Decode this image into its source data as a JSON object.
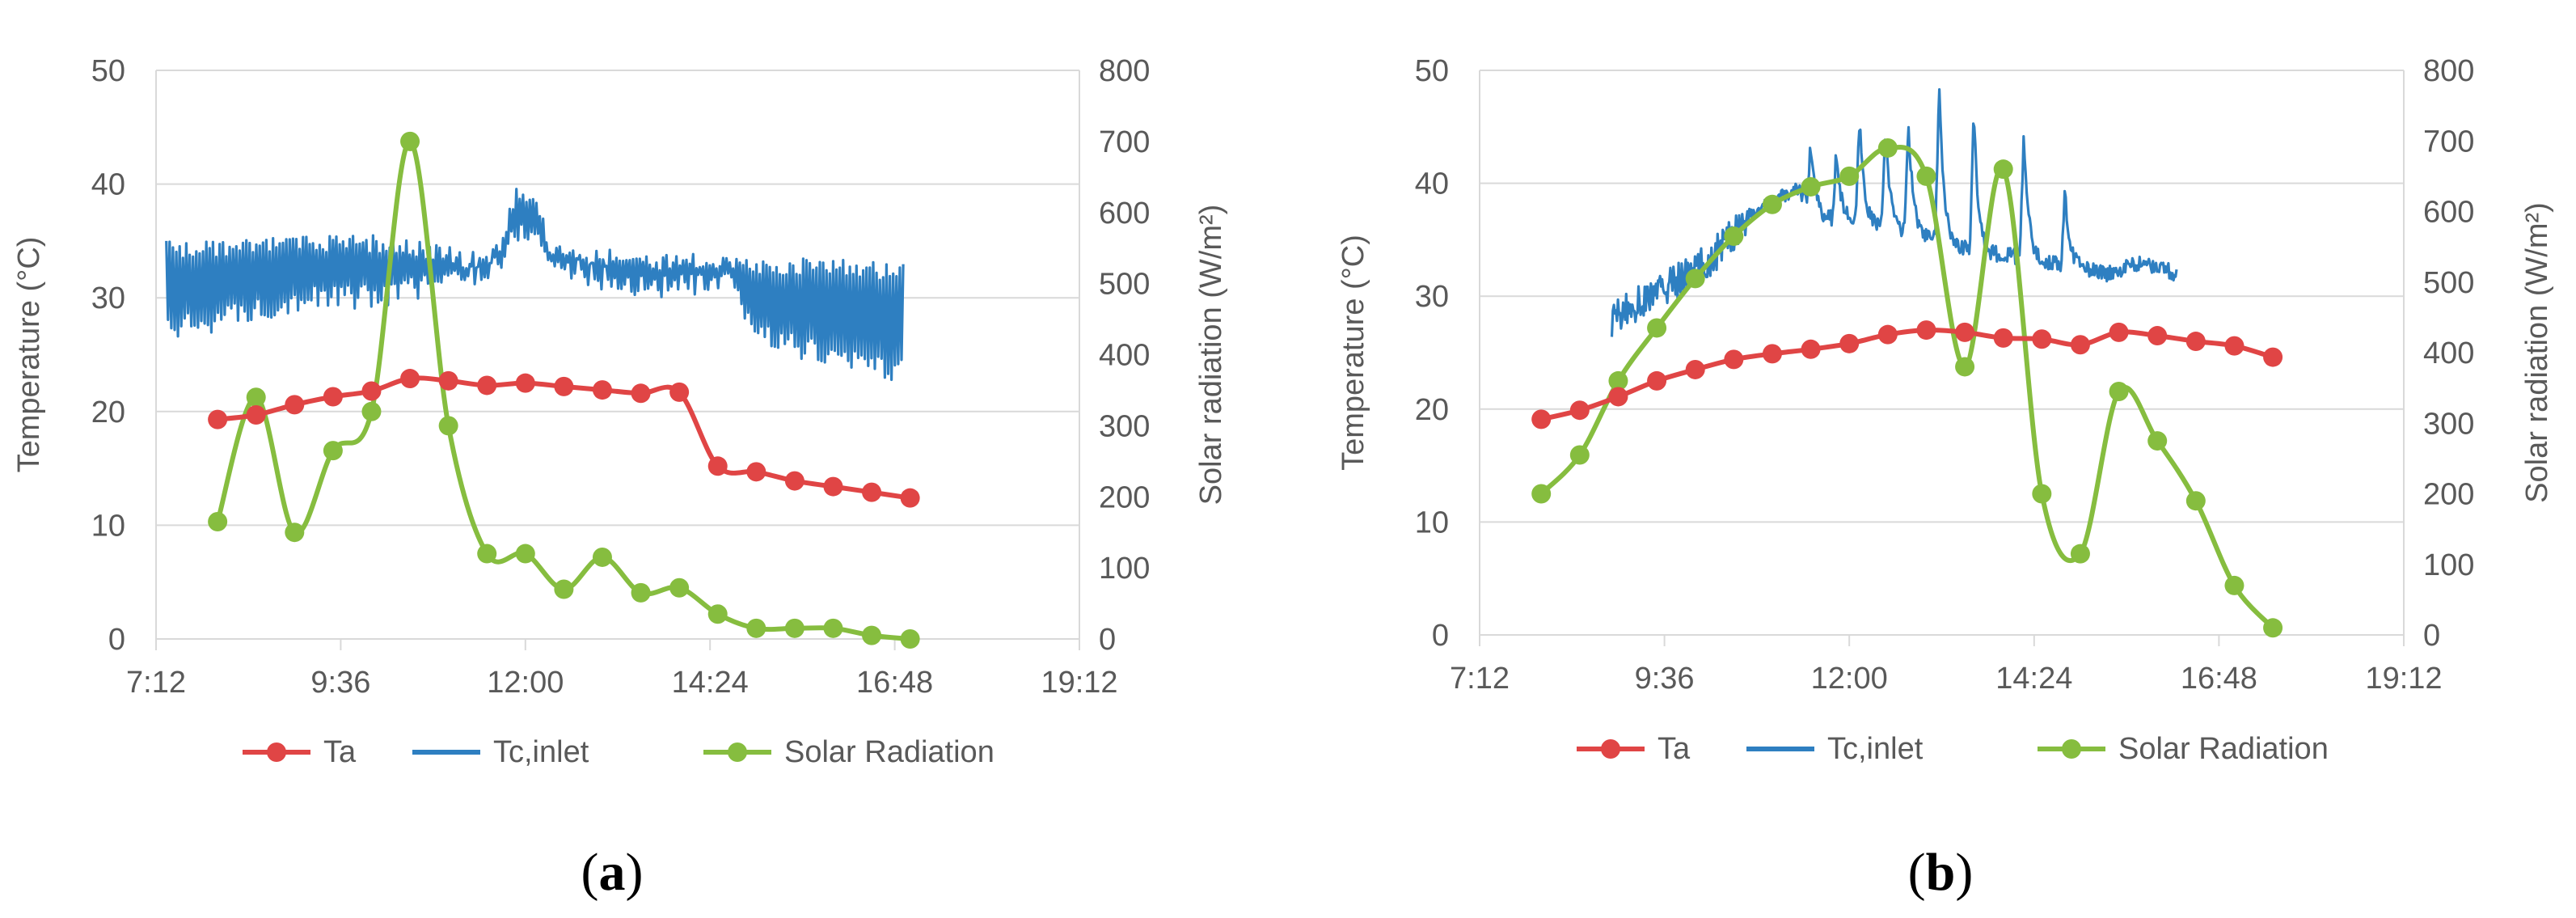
{
  "colors": {
    "ta": "#e04545",
    "tc": "#2e7fc1",
    "solar": "#86bd3f",
    "grid": "#d9d9d9",
    "tick": "#595959"
  },
  "chart_data": [
    {
      "type": "line",
      "panel_label_parts": [
        "(",
        "a",
        ")"
      ],
      "xlabel": "",
      "ylabel": "Temperature (°C)",
      "y2label": "Solar radiation (W/m²)",
      "xlim": [
        432,
        1152
      ],
      "ylim": [
        0,
        50
      ],
      "y2lim": [
        0,
        800
      ],
      "xticks": [
        "7:12",
        "9:36",
        "12:00",
        "14:24",
        "16:48",
        "19:12"
      ],
      "yticks": [
        "0",
        "10",
        "20",
        "30",
        "40",
        "50"
      ],
      "y2ticks": [
        "0",
        "100",
        "200",
        "300",
        "400",
        "500",
        "600",
        "700",
        "800"
      ],
      "grid": true,
      "legend": "bottom",
      "legend_labels": [
        "Ta",
        "Tc,inlet",
        "Solar Radiation"
      ],
      "series": [
        {
          "name": "Ta",
          "axis": "left",
          "x": [
            480,
            510,
            540,
            570,
            600,
            630,
            660,
            690,
            720,
            750,
            780,
            810,
            840,
            870,
            900,
            930,
            960,
            990,
            1020
          ],
          "y": [
            19.3,
            19.7,
            20.6,
            21.3,
            21.8,
            22.9,
            22.7,
            22.3,
            22.5,
            22.2,
            21.9,
            21.6,
            21.7,
            15.2,
            14.7,
            13.9,
            13.4,
            12.9,
            12.4
          ]
        },
        {
          "name": "Tc,inlet",
          "axis": "left",
          "type": "oscillating",
          "x_range": [
            440,
            1015
          ],
          "envelope": [
            {
              "x": 440,
              "high": 35,
              "low": 26
            },
            {
              "x": 550,
              "high": 35.5,
              "low": 29
            },
            {
              "x": 600,
              "high": 35.5,
              "low": 29
            },
            {
              "x": 640,
              "high": 35,
              "low": 30
            },
            {
              "x": 680,
              "high": 34,
              "low": 31
            },
            {
              "x": 700,
              "high": 35,
              "low": 32
            },
            {
              "x": 712,
              "high": 40,
              "low": 34.5
            },
            {
              "x": 725,
              "high": 40,
              "low": 35
            },
            {
              "x": 740,
              "high": 35,
              "low": 32
            },
            {
              "x": 800,
              "high": 34,
              "low": 30
            },
            {
              "x": 880,
              "high": 34,
              "low": 30
            },
            {
              "x": 900,
              "high": 33.5,
              "low": 26
            },
            {
              "x": 950,
              "high": 33.5,
              "low": 24
            },
            {
              "x": 1015,
              "high": 33,
              "low": 22.5
            }
          ]
        },
        {
          "name": "Solar Radiation",
          "axis": "right",
          "x": [
            480,
            510,
            540,
            570,
            600,
            630,
            660,
            690,
            720,
            750,
            780,
            810,
            840,
            870,
            900,
            930,
            960,
            990,
            1020
          ],
          "y": [
            165,
            340,
            150,
            265,
            320,
            700,
            300,
            120,
            120,
            70,
            115,
            65,
            72,
            35,
            15,
            15,
            15,
            5,
            0
          ]
        }
      ]
    },
    {
      "type": "line",
      "panel_label_parts": [
        "(",
        "b",
        ")"
      ],
      "xlabel": "",
      "ylabel": "Temperature (°C)",
      "y2label": "Solar radiation (W/m²)",
      "xlim": [
        432,
        1152
      ],
      "ylim": [
        0,
        50
      ],
      "y2lim": [
        0,
        800
      ],
      "xticks": [
        "7:12",
        "9:36",
        "12:00",
        "14:24",
        "16:48",
        "19:12"
      ],
      "yticks": [
        "0",
        "10",
        "20",
        "30",
        "40",
        "50"
      ],
      "y2ticks": [
        "0",
        "100",
        "200",
        "300",
        "400",
        "500",
        "600",
        "700",
        "800"
      ],
      "grid": true,
      "legend": "bottom",
      "legend_labels": [
        "Ta",
        "Tc,inlet",
        "Solar Radiation"
      ],
      "series": [
        {
          "name": "Ta",
          "axis": "left",
          "x": [
            480,
            510,
            540,
            570,
            600,
            630,
            660,
            690,
            720,
            750,
            780,
            810,
            840,
            870,
            900,
            930,
            960,
            990,
            1020,
            1050
          ],
          "y": [
            19.1,
            19.9,
            21.1,
            22.5,
            23.5,
            24.4,
            24.9,
            25.3,
            25.8,
            26.6,
            27.0,
            26.8,
            26.3,
            26.2,
            25.7,
            26.8,
            26.5,
            26.0,
            25.6,
            24.6
          ]
        },
        {
          "name": "Tc,inlet",
          "axis": "left",
          "type": "oscillating",
          "x_range": [
            535,
            975
          ],
          "baseline": [
            {
              "x": 535,
              "y": 28
            },
            {
              "x": 580,
              "y": 31
            },
            {
              "x": 610,
              "y": 33
            },
            {
              "x": 640,
              "y": 37
            },
            {
              "x": 680,
              "y": 39.5
            },
            {
              "x": 700,
              "y": 37
            },
            {
              "x": 760,
              "y": 36
            },
            {
              "x": 820,
              "y": 34
            },
            {
              "x": 880,
              "y": 33
            },
            {
              "x": 920,
              "y": 32
            },
            {
              "x": 950,
              "y": 33
            },
            {
              "x": 975,
              "y": 32
            }
          ],
          "spikes": [
            {
              "x": 690,
              "top": 43.5
            },
            {
              "x": 710,
              "top": 43
            },
            {
              "x": 728,
              "top": 45.5
            },
            {
              "x": 748,
              "top": 45
            },
            {
              "x": 766,
              "top": 45.5
            },
            {
              "x": 790,
              "top": 48.5
            },
            {
              "x": 817,
              "top": 46.5
            },
            {
              "x": 856,
              "top": 44.5
            },
            {
              "x": 888,
              "top": 39.5
            }
          ]
        },
        {
          "name": "Solar Radiation",
          "axis": "right",
          "x": [
            480,
            510,
            540,
            570,
            600,
            630,
            660,
            690,
            720,
            750,
            780,
            810,
            840,
            870,
            900,
            930,
            960,
            990,
            1020,
            1050
          ],
          "y": [
            200,
            255,
            360,
            435,
            505,
            565,
            610,
            635,
            650,
            690,
            650,
            380,
            660,
            200,
            115,
            345,
            275,
            190,
            70,
            10
          ]
        }
      ]
    }
  ]
}
